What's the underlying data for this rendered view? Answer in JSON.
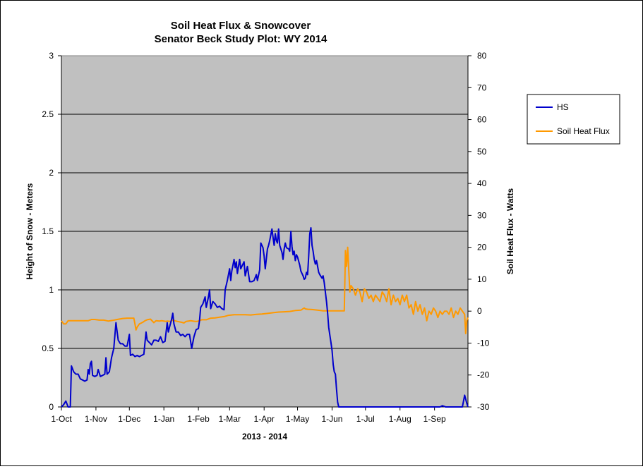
{
  "chart_data": {
    "type": "line",
    "title": "Soil Heat Flux & Snowcover",
    "subtitle": "Senator Beck Study Plot: WY 2014",
    "xlabel": "2013  -  2014",
    "ylabel": "Height of Snow - Meters",
    "y2label": "Soil Heat Flux - Watts",
    "x_tick_labels": [
      "1-Oct",
      "1-Nov",
      "1-Dec",
      "1-Jan",
      "1-Feb",
      "1-Mar",
      "1-Apr",
      "1-May",
      "1-Jun",
      "1-Jul",
      "1-Aug",
      "1-Sep"
    ],
    "x_tick_days": [
      0,
      31,
      61,
      92,
      123,
      151,
      182,
      212,
      243,
      273,
      304,
      335
    ],
    "xlim_days": [
      0,
      365
    ],
    "ylim": [
      0,
      3
    ],
    "y_ticks": [
      "0",
      "0.5",
      "1",
      "1.5",
      "2",
      "2.5",
      "3"
    ],
    "y2lim": [
      -30,
      80
    ],
    "y2_ticks": [
      "-30",
      "-20",
      "-10",
      "0",
      "10",
      "20",
      "30",
      "40",
      "50",
      "60",
      "70",
      "80"
    ],
    "grid": "horizontal",
    "plot_background": "#c0c0c0",
    "legend_position": "right",
    "series": [
      {
        "name": "HS",
        "axis": "left",
        "color": "#0000cc",
        "points": [
          [
            0,
            0
          ],
          [
            2,
            0.02
          ],
          [
            4,
            0.05
          ],
          [
            6,
            0
          ],
          [
            8,
            0
          ],
          [
            9,
            0.35
          ],
          [
            11,
            0.3
          ],
          [
            13,
            0.28
          ],
          [
            15,
            0.28
          ],
          [
            17,
            0.24
          ],
          [
            19,
            0.23
          ],
          [
            21,
            0.22
          ],
          [
            23,
            0.23
          ],
          [
            24,
            0.32
          ],
          [
            25,
            0.28
          ],
          [
            26,
            0.37
          ],
          [
            27,
            0.39
          ],
          [
            28,
            0.27
          ],
          [
            30,
            0.26
          ],
          [
            32,
            0.27
          ],
          [
            33,
            0.32
          ],
          [
            35,
            0.26
          ],
          [
            37,
            0.27
          ],
          [
            39,
            0.28
          ],
          [
            40,
            0.42
          ],
          [
            41,
            0.28
          ],
          [
            43,
            0.3
          ],
          [
            45,
            0.42
          ],
          [
            47,
            0.5
          ],
          [
            49,
            0.72
          ],
          [
            51,
            0.57
          ],
          [
            53,
            0.54
          ],
          [
            55,
            0.54
          ],
          [
            57,
            0.52
          ],
          [
            59,
            0.52
          ],
          [
            61,
            0.62
          ],
          [
            62,
            0.44
          ],
          [
            64,
            0.45
          ],
          [
            66,
            0.43
          ],
          [
            68,
            0.44
          ],
          [
            70,
            0.43
          ],
          [
            72,
            0.44
          ],
          [
            74,
            0.45
          ],
          [
            76,
            0.64
          ],
          [
            77,
            0.57
          ],
          [
            79,
            0.55
          ],
          [
            81,
            0.53
          ],
          [
            83,
            0.57
          ],
          [
            85,
            0.57
          ],
          [
            87,
            0.56
          ],
          [
            89,
            0.6
          ],
          [
            91,
            0.55
          ],
          [
            93,
            0.56
          ],
          [
            95,
            0.72
          ],
          [
            96,
            0.64
          ],
          [
            97,
            0.68
          ],
          [
            99,
            0.75
          ],
          [
            100,
            0.8
          ],
          [
            101,
            0.71
          ],
          [
            103,
            0.64
          ],
          [
            105,
            0.64
          ],
          [
            107,
            0.61
          ],
          [
            109,
            0.62
          ],
          [
            111,
            0.6
          ],
          [
            113,
            0.62
          ],
          [
            115,
            0.62
          ],
          [
            117,
            0.5
          ],
          [
            119,
            0.6
          ],
          [
            121,
            0.66
          ],
          [
            123,
            0.67
          ],
          [
            124,
            0.74
          ],
          [
            125,
            0.85
          ],
          [
            127,
            0.88
          ],
          [
            129,
            0.94
          ],
          [
            130,
            0.85
          ],
          [
            132,
            0.94
          ],
          [
            133,
            1.0
          ],
          [
            134,
            0.84
          ],
          [
            136,
            0.9
          ],
          [
            138,
            0.88
          ],
          [
            140,
            0.85
          ],
          [
            142,
            0.86
          ],
          [
            144,
            0.84
          ],
          [
            146,
            0.83
          ],
          [
            147,
            1.0
          ],
          [
            149,
            1.08
          ],
          [
            151,
            1.18
          ],
          [
            152,
            1.08
          ],
          [
            153,
            1.16
          ],
          [
            155,
            1.26
          ],
          [
            156,
            1.19
          ],
          [
            157,
            1.24
          ],
          [
            158,
            1.14
          ],
          [
            160,
            1.26
          ],
          [
            161,
            1.18
          ],
          [
            162,
            1.2
          ],
          [
            164,
            1.24
          ],
          [
            165,
            1.12
          ],
          [
            167,
            1.2
          ],
          [
            169,
            1.07
          ],
          [
            171,
            1.07
          ],
          [
            173,
            1.08
          ],
          [
            175,
            1.13
          ],
          [
            176,
            1.08
          ],
          [
            178,
            1.17
          ],
          [
            179,
            1.4
          ],
          [
            181,
            1.36
          ],
          [
            182,
            1.29
          ],
          [
            183,
            1.18
          ],
          [
            185,
            1.35
          ],
          [
            186,
            1.38
          ],
          [
            187,
            1.42
          ],
          [
            189,
            1.52
          ],
          [
            190,
            1.45
          ],
          [
            191,
            1.38
          ],
          [
            192,
            1.48
          ],
          [
            193,
            1.42
          ],
          [
            194,
            1.4
          ],
          [
            195,
            1.52
          ],
          [
            196,
            1.38
          ],
          [
            198,
            1.32
          ],
          [
            199,
            1.26
          ],
          [
            200,
            1.35
          ],
          [
            201,
            1.4
          ],
          [
            202,
            1.36
          ],
          [
            204,
            1.35
          ],
          [
            205,
            1.33
          ],
          [
            206,
            1.5
          ],
          [
            207,
            1.37
          ],
          [
            208,
            1.3
          ],
          [
            209,
            1.33
          ],
          [
            210,
            1.25
          ],
          [
            211,
            1.3
          ],
          [
            212,
            1.28
          ],
          [
            214,
            1.21
          ],
          [
            215,
            1.16
          ],
          [
            217,
            1.12
          ],
          [
            218,
            1.09
          ],
          [
            219,
            1.1
          ],
          [
            220,
            1.15
          ],
          [
            221,
            1.13
          ],
          [
            222,
            1.28
          ],
          [
            223,
            1.48
          ],
          [
            224,
            1.53
          ],
          [
            225,
            1.38
          ],
          [
            226,
            1.33
          ],
          [
            227,
            1.26
          ],
          [
            228,
            1.22
          ],
          [
            229,
            1.25
          ],
          [
            230,
            1.2
          ],
          [
            231,
            1.15
          ],
          [
            232,
            1.13
          ],
          [
            234,
            1.1
          ],
          [
            235,
            1.12
          ],
          [
            236,
            1.06
          ],
          [
            237,
            0.98
          ],
          [
            238,
            0.9
          ],
          [
            239,
            0.8
          ],
          [
            240,
            0.68
          ],
          [
            242,
            0.55
          ],
          [
            243,
            0.48
          ],
          [
            244,
            0.36
          ],
          [
            245,
            0.3
          ],
          [
            246,
            0.28
          ],
          [
            247,
            0.15
          ],
          [
            248,
            0.04
          ],
          [
            249,
            0
          ],
          [
            274,
            0
          ],
          [
            340,
            0
          ],
          [
            342,
            0.01
          ],
          [
            345,
            0
          ],
          [
            360,
            0
          ],
          [
            362,
            0.1
          ],
          [
            364,
            0.03
          ],
          [
            365,
            0
          ]
        ]
      },
      {
        "name": "Soil Heat Flux",
        "axis": "right",
        "color": "#ff9900",
        "points": [
          [
            0,
            -3
          ],
          [
            2,
            -4
          ],
          [
            4,
            -4
          ],
          [
            6,
            -3
          ],
          [
            8,
            -3
          ],
          [
            12,
            -3
          ],
          [
            16,
            -3
          ],
          [
            20,
            -3
          ],
          [
            24,
            -3
          ],
          [
            27,
            -2.6
          ],
          [
            30,
            -2.6
          ],
          [
            34,
            -2.8
          ],
          [
            38,
            -2.8
          ],
          [
            42,
            -3.1
          ],
          [
            46,
            -2.9
          ],
          [
            50,
            -2.6
          ],
          [
            55,
            -2.3
          ],
          [
            59,
            -2.2
          ],
          [
            65,
            -2.2
          ],
          [
            66,
            -4
          ],
          [
            67,
            -5.9
          ],
          [
            68,
            -5
          ],
          [
            70,
            -4
          ],
          [
            73,
            -3.5
          ],
          [
            75,
            -3
          ],
          [
            77,
            -2.7
          ],
          [
            80,
            -2.5
          ],
          [
            83,
            -3.6
          ],
          [
            85,
            -3
          ],
          [
            88,
            -3.1
          ],
          [
            90,
            -3
          ],
          [
            94,
            -3.2
          ],
          [
            95,
            -3.1
          ],
          [
            98,
            -3.2
          ],
          [
            100,
            -2.8
          ],
          [
            104,
            -3.2
          ],
          [
            108,
            -3.5
          ],
          [
            110,
            -3.7
          ],
          [
            112,
            -3.2
          ],
          [
            116,
            -3
          ],
          [
            120,
            -3.2
          ],
          [
            122,
            -3.2
          ],
          [
            126,
            -2.7
          ],
          [
            130,
            -2.7
          ],
          [
            134,
            -2.2
          ],
          [
            138,
            -2.1
          ],
          [
            142,
            -1.9
          ],
          [
            146,
            -1.7
          ],
          [
            150,
            -1.3
          ],
          [
            155,
            -1.1
          ],
          [
            160,
            -1.1
          ],
          [
            165,
            -1.1
          ],
          [
            170,
            -1.2
          ],
          [
            175,
            -1
          ],
          [
            180,
            -0.9
          ],
          [
            185,
            -0.7
          ],
          [
            190,
            -0.5
          ],
          [
            195,
            -0.3
          ],
          [
            200,
            -0.2
          ],
          [
            205,
            -0.1
          ],
          [
            210,
            0.2
          ],
          [
            215,
            0.3
          ],
          [
            218,
            1
          ],
          [
            219,
            0.7
          ],
          [
            221,
            0.6
          ],
          [
            225,
            0.5
          ],
          [
            230,
            0.3
          ],
          [
            235,
            0.1
          ],
          [
            240,
            0.1
          ],
          [
            244,
            0.1
          ],
          [
            250,
            0.1
          ],
          [
            254,
            0.1
          ],
          [
            255,
            19
          ],
          [
            256,
            14
          ],
          [
            257,
            20
          ],
          [
            258,
            13
          ],
          [
            259,
            6
          ],
          [
            260,
            8
          ],
          [
            262,
            7
          ],
          [
            264,
            5
          ],
          [
            266,
            7
          ],
          [
            268,
            6
          ],
          [
            270,
            3
          ],
          [
            272,
            7
          ],
          [
            274,
            6
          ],
          [
            276,
            4
          ],
          [
            278,
            5
          ],
          [
            280,
            3
          ],
          [
            282,
            5
          ],
          [
            284,
            4
          ],
          [
            286,
            3
          ],
          [
            288,
            6
          ],
          [
            290,
            5
          ],
          [
            292,
            3
          ],
          [
            294,
            7
          ],
          [
            296,
            2
          ],
          [
            298,
            5
          ],
          [
            300,
            3
          ],
          [
            302,
            4
          ],
          [
            304,
            2
          ],
          [
            306,
            5
          ],
          [
            308,
            3
          ],
          [
            310,
            5
          ],
          [
            312,
            1
          ],
          [
            314,
            2
          ],
          [
            316,
            -1
          ],
          [
            318,
            3
          ],
          [
            320,
            0
          ],
          [
            322,
            2
          ],
          [
            324,
            -1
          ],
          [
            326,
            1
          ],
          [
            328,
            -3
          ],
          [
            330,
            0
          ],
          [
            332,
            -1
          ],
          [
            334,
            1
          ],
          [
            336,
            0
          ],
          [
            338,
            -2
          ],
          [
            340,
            0
          ],
          [
            342,
            -1
          ],
          [
            344,
            0
          ],
          [
            346,
            0
          ],
          [
            348,
            -1
          ],
          [
            350,
            1
          ],
          [
            352,
            -2
          ],
          [
            354,
            0
          ],
          [
            356,
            -1
          ],
          [
            358,
            1
          ],
          [
            360,
            0
          ],
          [
            362,
            -1
          ],
          [
            363,
            -7
          ],
          [
            364,
            -3
          ],
          [
            365,
            -2
          ]
        ]
      }
    ]
  }
}
